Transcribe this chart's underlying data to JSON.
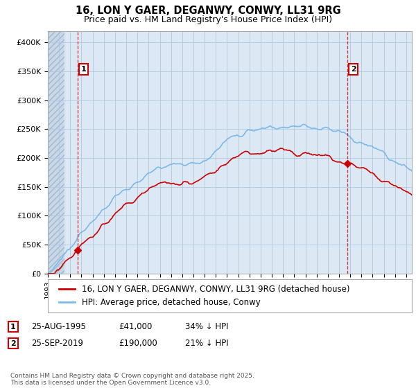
{
  "title": "16, LON Y GAER, DEGANWY, CONWY, LL31 9RG",
  "subtitle": "Price paid vs. HM Land Registry's House Price Index (HPI)",
  "ylim": [
    0,
    420000
  ],
  "yticks": [
    0,
    50000,
    100000,
    150000,
    200000,
    250000,
    300000,
    350000,
    400000
  ],
  "ytick_labels": [
    "£0",
    "£50K",
    "£100K",
    "£150K",
    "£200K",
    "£250K",
    "£300K",
    "£350K",
    "£400K"
  ],
  "xlim_start": 1993,
  "xlim_end": 2025.5,
  "hpi_color": "#7cb9e8",
  "price_color": "#cc0000",
  "purchase1_year": 1995.667,
  "purchase1_price": 41000,
  "purchase1_hpi": 62121,
  "purchase2_year": 2019.75,
  "purchase2_price": 190000,
  "purchase2_hpi": 240506,
  "purchase1_label_text": "1",
  "purchase2_label_text": "2",
  "legend_entry1": "16, LON Y GAER, DEGANWY, CONWY, LL31 9RG (detached house)",
  "legend_entry2": "HPI: Average price, detached house, Conwy",
  "purchase1_date": "25-AUG-1995",
  "purchase1_display_price": "£41,000",
  "purchase1_pct": "34% ↓ HPI",
  "purchase2_date": "25-SEP-2019",
  "purchase2_display_price": "£190,000",
  "purchase2_pct": "21% ↓ HPI",
  "footnote": "Contains HM Land Registry data © Crown copyright and database right 2025.\nThis data is licensed under the Open Government Licence v3.0.",
  "bg_color": "#ffffff",
  "plot_bg_color": "#dce9f5",
  "hatch_area_color": "#c8d8e8",
  "grid_color": "#b0c8e0",
  "title_fontsize": 10.5,
  "subtitle_fontsize": 9,
  "tick_fontsize": 8,
  "legend_fontsize": 8.5,
  "table_fontsize": 8.5,
  "footnote_fontsize": 6.5
}
